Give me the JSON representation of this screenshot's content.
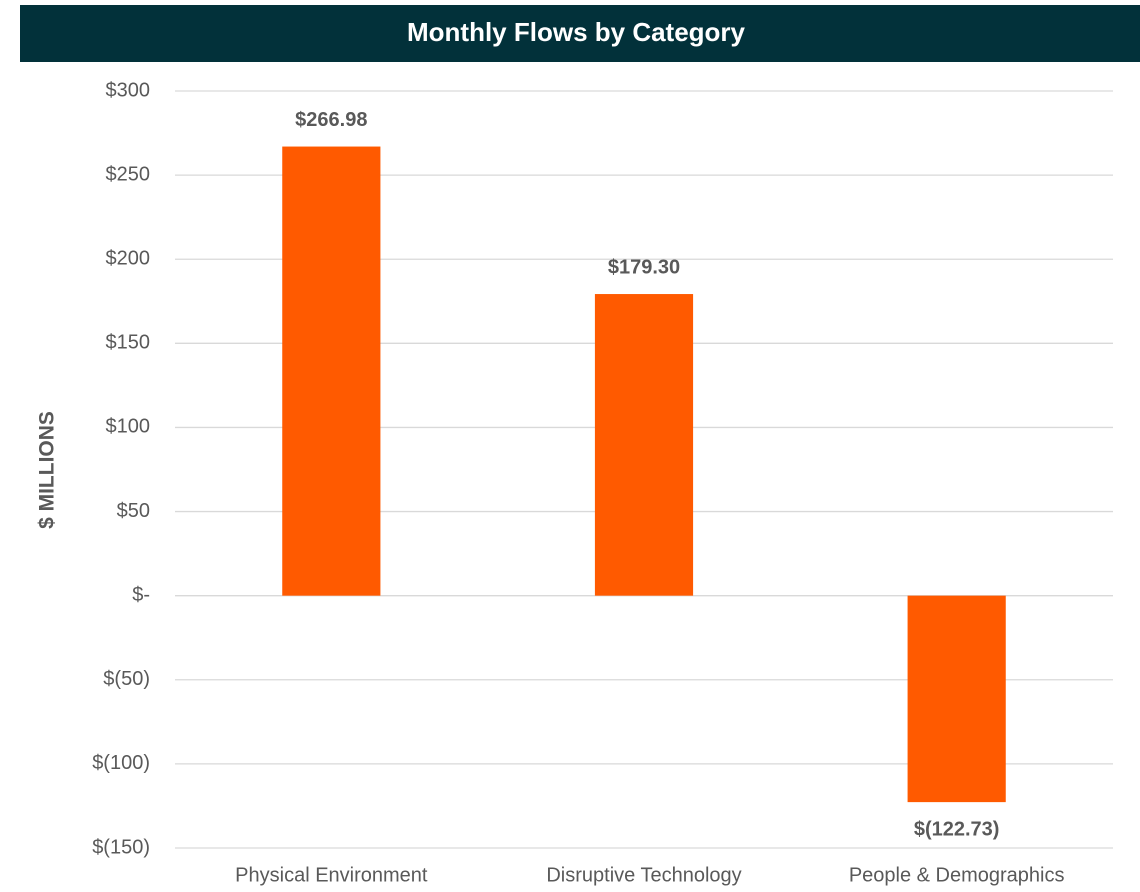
{
  "chart_data": {
    "type": "bar",
    "title": "Monthly Flows by Category",
    "y_label": "$ MILLIONS",
    "categories": [
      "Physical Environment",
      "Disruptive Technology",
      "People & Demographics"
    ],
    "values": [
      266.98,
      179.3,
      -122.73
    ],
    "value_labels": [
      "$266.98",
      "$179.30",
      "$(122.73)"
    ],
    "color": "#ff5a00",
    "ylim": [
      -150,
      300
    ],
    "yticks": [
      {
        "value": -150,
        "label": "$(150)"
      },
      {
        "value": -100,
        "label": "$(100)"
      },
      {
        "value": -50,
        "label": "$(50)"
      },
      {
        "value": 0,
        "label": "$-"
      },
      {
        "value": 50,
        "label": "$50"
      },
      {
        "value": 100,
        "label": "$100"
      },
      {
        "value": 150,
        "label": "$150"
      },
      {
        "value": 200,
        "label": "$200"
      },
      {
        "value": 250,
        "label": "$250"
      },
      {
        "value": 300,
        "label": "$300"
      }
    ],
    "grid": true
  }
}
